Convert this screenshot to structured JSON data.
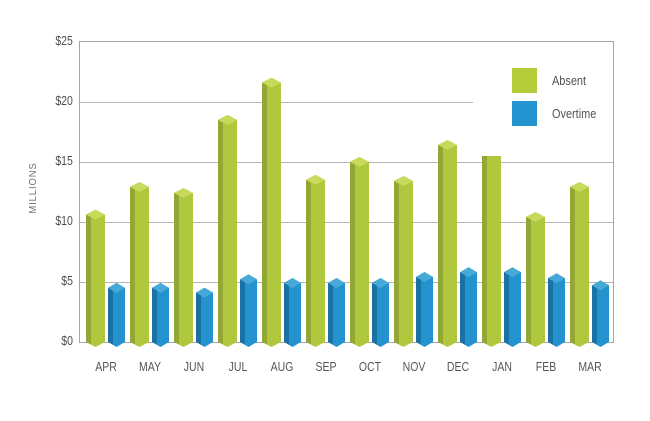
{
  "chart_data": {
    "type": "bar",
    "title": "",
    "ylabel": "MILLIONS",
    "categories": [
      "APR",
      "MAY",
      "JUN",
      "JUL",
      "AUG",
      "SEP",
      "OCT",
      "NOV",
      "DEC",
      "JAN",
      "FEB",
      "MAR"
    ],
    "series": [
      {
        "name": "Absent",
        "values": [
          10.2,
          12.5,
          12.0,
          18.1,
          21.2,
          13.1,
          14.6,
          13.0,
          16.0,
          16.0,
          10.0,
          12.5
        ],
        "colors": {
          "front": "#afc83e",
          "side": "#93a833",
          "top": "#c9d95c",
          "legend": "#b4cc3a"
        }
      },
      {
        "name": "Overtime",
        "values": [
          4.1,
          4.1,
          3.7,
          4.8,
          4.5,
          4.5,
          4.5,
          5.0,
          5.4,
          5.4,
          4.9,
          4.3
        ],
        "colors": {
          "front": "#2492cc",
          "side": "#1a71a3",
          "top": "#46a9d8",
          "legend": "#2494d0"
        }
      }
    ],
    "y_axis": {
      "min": 0,
      "max": 25,
      "tick_interval": 5,
      "tick_labels": [
        "$25",
        "$20",
        "$15",
        "$10",
        "$5",
        "$0"
      ],
      "tick_values": [
        25,
        20,
        15,
        10,
        5,
        0
      ]
    },
    "grid": true,
    "legend_position": "top-right"
  },
  "colors": {
    "background": "#ffffff",
    "gridline": "#b3b5b7",
    "plot_border": "#a3a5a8",
    "y_tick_text": "#4b4c50",
    "x_tick_text": "#55565a",
    "ylabel_text": "#6f7174",
    "legend_text": "#515256"
  }
}
